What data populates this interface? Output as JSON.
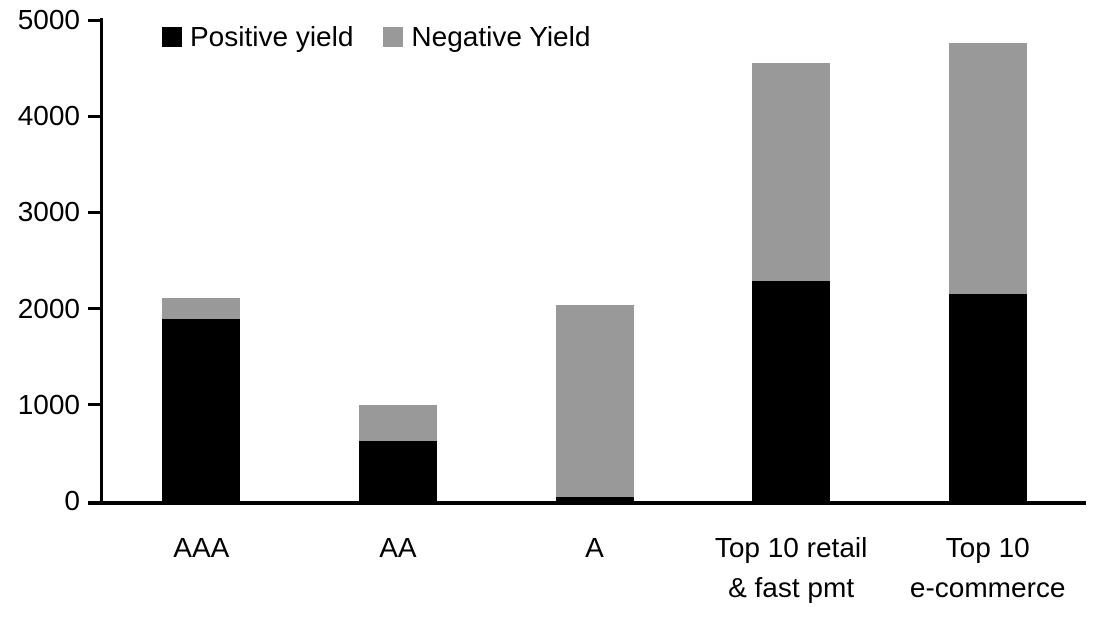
{
  "chart_data": {
    "type": "bar",
    "stacked": true,
    "title": "",
    "xlabel": "",
    "ylabel": "",
    "categories": [
      "AAA",
      "AA",
      "A",
      "Top 10 retail & fast pmt",
      "Top 10 e-commerce"
    ],
    "xtick_labels": [
      "AAA",
      "AA",
      "A",
      "Top 10 retail\n& fast pmt",
      "Top 10\ne-commerce"
    ],
    "series": [
      {
        "name": "Positive yield",
        "color": "#000000",
        "values": [
          1890,
          620,
          45,
          2290,
          2150
        ]
      },
      {
        "name": "Negative Yield",
        "color": "#999999",
        "values": [
          220,
          380,
          1990,
          2260,
          2610
        ]
      }
    ],
    "totals": [
      2110,
      1000,
      2035,
      4550,
      4760
    ],
    "ylim": [
      0,
      5000
    ],
    "yticks": [
      0,
      1000,
      2000,
      3000,
      4000,
      5000
    ],
    "grid": false,
    "legend_position": "top-left-inside",
    "axis_color": "#000000",
    "background_color": "#ffffff"
  },
  "legend": {
    "items": [
      {
        "label": "Positive yield",
        "color": "#000000"
      },
      {
        "label": "Negative Yield",
        "color": "#999999"
      }
    ]
  }
}
